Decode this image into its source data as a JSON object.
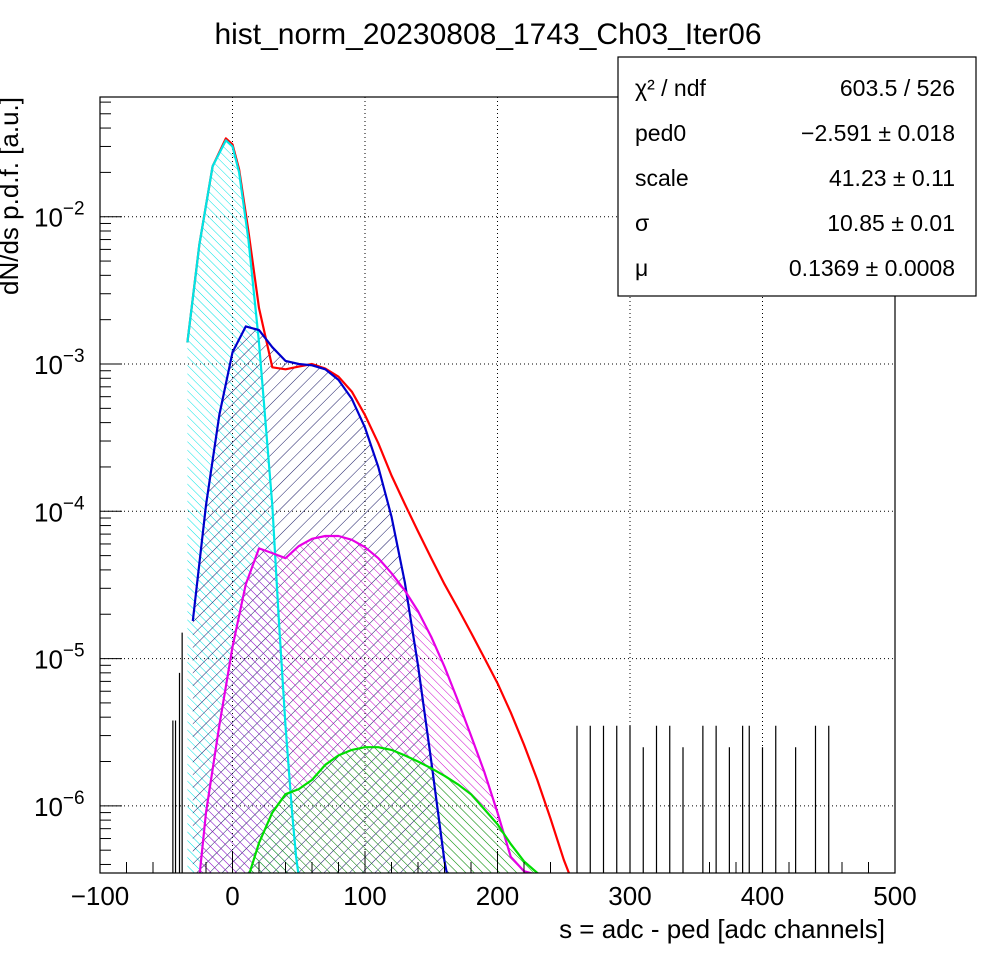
{
  "chart_data": {
    "type": "line",
    "title": "hist_norm_20230808_1743_Ch03_Iter06",
    "xlabel": "s = adc - ped [adc channels]",
    "ylabel": "dN/ds p.d.f. [a.u.]",
    "xlim": [
      -100,
      500
    ],
    "ylim": [
      3.5e-07,
      0.065
    ],
    "yscale": "log",
    "grid": true,
    "legend_position": "top-right",
    "x_ticks": [
      "−100",
      "0",
      "100",
      "200",
      "300",
      "400",
      "500"
    ],
    "x_tick_values": [
      -100,
      0,
      100,
      200,
      300,
      400,
      500
    ],
    "y_ticks": [
      {
        "value": 0.01,
        "base": "10",
        "exp": "−2"
      },
      {
        "value": 0.001,
        "base": "10",
        "exp": "−3"
      },
      {
        "value": 0.0001,
        "base": "10",
        "exp": "−4"
      },
      {
        "value": 1e-05,
        "base": "10",
        "exp": "−5"
      },
      {
        "value": 1e-06,
        "base": "10",
        "exp": "−6"
      }
    ],
    "stats": [
      {
        "label": "χ² / ndf",
        "value": "603.5 / 526"
      },
      {
        "label": "ped0",
        "value": "−2.591 ± 0.018"
      },
      {
        "label": "scale",
        "value": "41.23 ± 0.11"
      },
      {
        "label": "σ",
        "value": "10.85 ± 0.01"
      },
      {
        "label": "μ",
        "value": "0.1369 ± 0.0008"
      }
    ],
    "series": [
      {
        "color": "#ff0000",
        "x": [
          -34,
          -25,
          -15,
          -5,
          0,
          5,
          12,
          20,
          30,
          40,
          50,
          60,
          70,
          80,
          90,
          100,
          110,
          120,
          130,
          140,
          150,
          160,
          170,
          180,
          190,
          200,
          210,
          220,
          230,
          240,
          250,
          255
        ],
        "y": [
          0.0014,
          0.0065,
          0.022,
          0.034,
          0.031,
          0.021,
          0.008,
          0.0024,
          0.00095,
          0.00092,
          0.00096,
          0.001,
          0.00093,
          0.00082,
          0.00065,
          0.00045,
          0.00029,
          0.000175,
          0.000112,
          7.3e-05,
          4.8e-05,
          3.2e-05,
          2.2e-05,
          1.5e-05,
          1.01e-05,
          6.8e-06,
          4.3e-06,
          2.6e-06,
          1.5e-06,
          8.2e-07,
          4.3e-07,
          3.3e-07
        ]
      },
      {
        "color": "#00e5e5",
        "x": [
          -34,
          -25,
          -15,
          -5,
          0,
          5,
          12,
          20,
          30,
          35,
          40,
          45,
          48,
          50
        ],
        "y": [
          0.0014,
          0.0065,
          0.022,
          0.033,
          0.03,
          0.02,
          0.007,
          0.0014,
          0.00011,
          1.8e-05,
          3.5e-06,
          9e-07,
          4.5e-07,
          3.3e-07
        ]
      },
      {
        "color": "#0000cc",
        "x": [
          -30,
          -20,
          -10,
          0,
          10,
          20,
          30,
          40,
          50,
          60,
          70,
          80,
          90,
          100,
          110,
          120,
          130,
          140,
          150,
          160,
          165,
          170
        ],
        "y": [
          1.8e-05,
          0.00011,
          0.00045,
          0.0012,
          0.0018,
          0.0017,
          0.0013,
          0.00105,
          0.001,
          0.00098,
          0.00092,
          0.00078,
          0.00058,
          0.00037,
          0.0002,
          9.2e-05,
          3.3e-05,
          9e-06,
          2e-06,
          4.2e-07,
          2.5e-07,
          2.5e-07
        ]
      },
      {
        "color": "#e600e6",
        "x": [
          -25,
          -20,
          -10,
          0,
          10,
          20,
          30,
          40,
          50,
          60,
          70,
          80,
          90,
          100,
          110,
          120,
          130,
          140,
          150,
          160,
          170,
          180,
          190,
          200,
          210,
          220,
          230,
          240
        ],
        "y": [
          3.3e-07,
          9e-07,
          3.5e-06,
          1.2e-05,
          3.2e-05,
          5.6e-05,
          5.2e-05,
          4.8e-05,
          5.8e-05,
          6.5e-05,
          6.8e-05,
          6.8e-05,
          6.4e-05,
          5.7e-05,
          4.8e-05,
          3.8e-05,
          2.9e-05,
          2.1e-05,
          1.4e-05,
          8.8e-06,
          5.2e-06,
          3e-06,
          1.7e-06,
          9e-07,
          4.5e-07,
          3.6e-07,
          3.4e-07,
          3.3e-07
        ]
      },
      {
        "color": "#00dd00",
        "x": [
          12,
          20,
          30,
          40,
          50,
          60,
          70,
          80,
          90,
          100,
          110,
          120,
          130,
          140,
          150,
          160,
          170,
          180,
          190,
          200,
          210,
          220,
          230,
          235
        ],
        "y": [
          3.3e-07,
          5.6e-07,
          9e-07,
          1.2e-06,
          1.3e-06,
          1.5e-06,
          1.9e-06,
          2.2e-06,
          2.4e-06,
          2.5e-06,
          2.5e-06,
          2.4e-06,
          2.2e-06,
          2e-06,
          1.8e-06,
          1.6e-06,
          1.4e-06,
          1.2e-06,
          9.5e-07,
          7.5e-07,
          5.5e-07,
          4.2e-07,
          3.5e-07,
          3.3e-07
        ]
      }
    ],
    "outliers": {
      "x": [
        -45,
        -43,
        -40,
        -38,
        260,
        270,
        280,
        290,
        300,
        310,
        320,
        330,
        340,
        355,
        365,
        375,
        385,
        390,
        400,
        410,
        425,
        440,
        450
      ],
      "y": [
        3.8e-06,
        3.8e-06,
        8e-06,
        1.5e-05,
        3.5e-06,
        3.5e-06,
        3.5e-06,
        3.5e-06,
        3.5e-06,
        2.5e-06,
        3.5e-06,
        3.5e-06,
        2.5e-06,
        3.5e-06,
        3.5e-06,
        2.5e-06,
        3.5e-06,
        3.5e-06,
        2.5e-06,
        3.5e-06,
        2.5e-06,
        3.5e-06,
        3.5e-06
      ]
    }
  }
}
